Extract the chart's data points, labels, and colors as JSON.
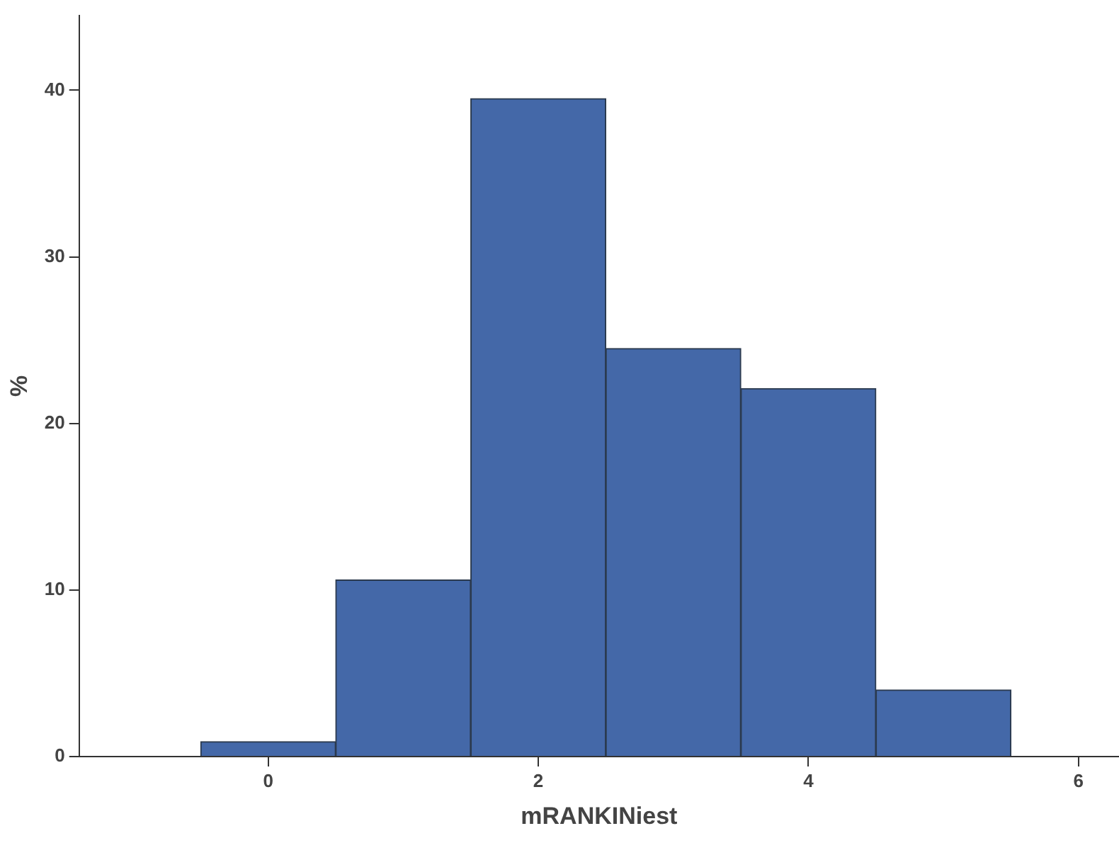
{
  "chart_data": {
    "type": "histogram",
    "xlabel": "mRANKINiest",
    "ylabel": "%",
    "bins": [
      -0.5,
      0.5,
      1.5,
      2.5,
      3.5,
      4.5,
      5.5
    ],
    "values": [
      0.9,
      10.6,
      39.5,
      24.5,
      22.1,
      4.0
    ],
    "color": "#4468a8",
    "xlim": [
      -1.4,
      6.3
    ],
    "xticks": [
      0,
      2,
      4,
      6
    ],
    "ylim": [
      0,
      44.5
    ],
    "yticks": [
      0,
      10,
      20,
      30,
      40
    ],
    "grid": false,
    "legend": false
  }
}
